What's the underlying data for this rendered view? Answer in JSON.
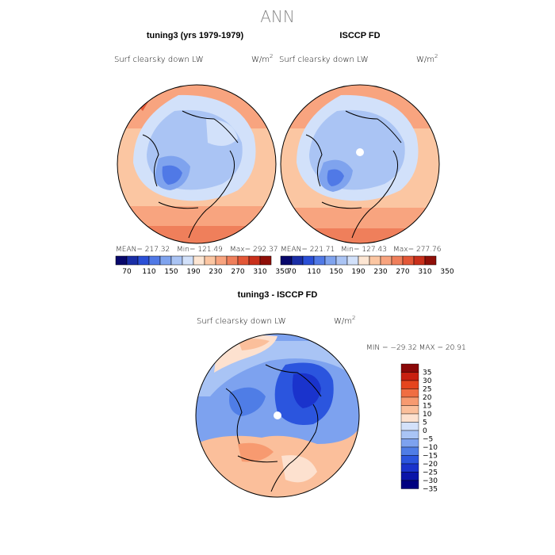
{
  "figure": {
    "title": "ANN"
  },
  "palettes": {
    "abs": [
      "#08086b",
      "#1a2ea6",
      "#2a4fd6",
      "#5079e6",
      "#7fa3ee",
      "#aac4f4",
      "#d2e1fa",
      "#fde6d3",
      "#fbc6a2",
      "#f8a47f",
      "#ef7f5b",
      "#e35737",
      "#c9301b",
      "#8f0f08"
    ],
    "diff": [
      "#000080",
      "#0a14a8",
      "#1a33cc",
      "#2b55de",
      "#4f7de6",
      "#7da2ef",
      "#a9c4f5",
      "#d3e1fa",
      "#fde1cf",
      "#fbbf9b",
      "#f79a70",
      "#f06d42",
      "#e5451e",
      "#c82010",
      "#8a0808"
    ]
  },
  "chart_data": [
    {
      "type": "heatmap",
      "projection": "north-polar-stereographic",
      "title": "tuning3 (yrs 1979-1979)",
      "variable": "Surf clearsky down LW",
      "units_prefix": "W/m",
      "units_exp": "2",
      "mean_text": "MEAN= 217.32",
      "min_text": "Min= 121.49",
      "max_text": "Max= 292.37",
      "colorbar_ticks": [
        "70",
        "110",
        "150",
        "190",
        "230",
        "270",
        "310",
        "350"
      ],
      "levels": [
        70,
        90,
        110,
        130,
        150,
        170,
        190,
        210,
        230,
        250,
        270,
        290,
        310,
        330,
        350
      ],
      "stats": {
        "mean": 217.32,
        "min": 121.49,
        "max": 292.37
      }
    },
    {
      "type": "heatmap",
      "projection": "north-polar-stereographic",
      "title": "ISCCP FD",
      "variable": "Surf clearsky down LW",
      "units_prefix": "W/m",
      "units_exp": "2",
      "mean_text": "MEAN= 221.71",
      "min_text": "Min= 127.43",
      "max_text": "Max= 277.76",
      "colorbar_ticks": [
        "70",
        "110",
        "150",
        "190",
        "230",
        "270",
        "310",
        "350"
      ],
      "levels": [
        70,
        90,
        110,
        130,
        150,
        170,
        190,
        210,
        230,
        250,
        270,
        290,
        310,
        330,
        350
      ],
      "stats": {
        "mean": 221.71,
        "min": 127.43,
        "max": 277.76
      }
    },
    {
      "type": "heatmap",
      "projection": "north-polar-stereographic",
      "title": "tuning3 - ISCCP FD",
      "variable": "Surf clearsky down LW",
      "units_prefix": "W/m",
      "units_exp": "2",
      "minmax_text": "MIN = −29.32 MAX =  20.91",
      "colorbar_ticks": [
        "35",
        "30",
        "25",
        "20",
        "15",
        "10",
        "5",
        "0",
        "−5",
        "−10",
        "−15",
        "−20",
        "−25",
        "−30",
        "−35"
      ],
      "levels": [
        -35,
        -30,
        -25,
        -20,
        -15,
        -10,
        -5,
        0,
        5,
        10,
        15,
        20,
        25,
        30,
        35
      ],
      "stats": {
        "min": -29.32,
        "max": 20.91
      }
    }
  ]
}
